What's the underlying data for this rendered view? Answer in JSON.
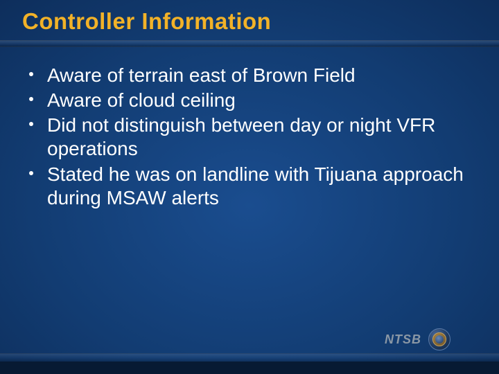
{
  "title": {
    "text": "Controller Information",
    "color": "#f2b228",
    "fontsize": 33,
    "fontweight": "bold"
  },
  "bullets": {
    "items": [
      "Aware of terrain east of Brown Field",
      "Aware of cloud ceiling",
      "Did not distinguish between day or night VFR operations",
      "Stated he was on landline with Tijuana approach during MSAW alerts"
    ],
    "text_color": "#ffffff",
    "bullet_color": "#ffffff",
    "fontsize": 28
  },
  "brand": {
    "label": "NTSB",
    "label_color": "#8a97a5"
  },
  "background": {
    "gradient_center": "#1a4d8f",
    "gradient_edge": "#081d3a"
  }
}
